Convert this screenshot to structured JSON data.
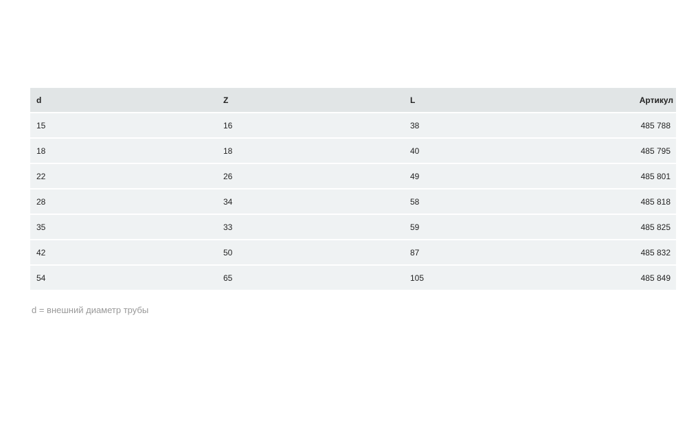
{
  "table": {
    "headers": [
      "d",
      "Z",
      "L",
      "Артикул"
    ],
    "rows": [
      [
        "15",
        "16",
        "38",
        "485 788"
      ],
      [
        "18",
        "18",
        "40",
        "485 795"
      ],
      [
        "22",
        "26",
        "49",
        "485 801"
      ],
      [
        "28",
        "34",
        "58",
        "485 818"
      ],
      [
        "35",
        "33",
        "59",
        "485 825"
      ],
      [
        "42",
        "50",
        "87",
        "485 832"
      ],
      [
        "54",
        "65",
        "105",
        "485 849"
      ]
    ]
  },
  "footnote": "d  =  внешний диаметр трубы",
  "colors": {
    "header_bg": "#e1e5e6",
    "row_bg": "#eff2f3",
    "footnote": "#999999"
  }
}
